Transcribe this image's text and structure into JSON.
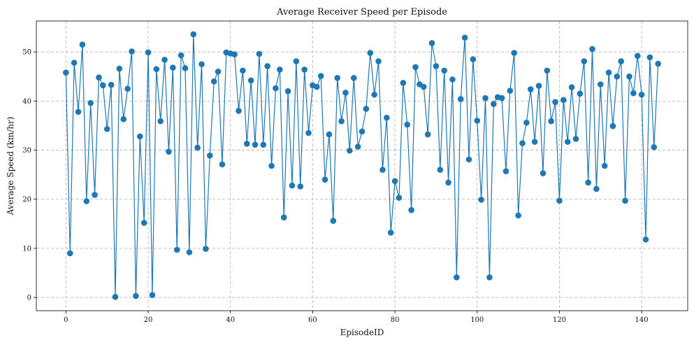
{
  "chart_data": {
    "type": "line",
    "title": "Average Receiver Speed per Episode",
    "xlabel": "EpisodeID",
    "ylabel": "Average Speed (km/hr)",
    "xlim": [
      -7.2,
      151.2
    ],
    "ylim": [
      -2.7,
      56.3
    ],
    "xticks": [
      0,
      20,
      40,
      60,
      80,
      100,
      120,
      140
    ],
    "yticks": [
      0,
      10,
      20,
      30,
      40,
      50
    ],
    "grid": true,
    "marker": "circle",
    "color": "#1f77b4",
    "x": [
      0,
      1,
      2,
      3,
      4,
      5,
      6,
      7,
      8,
      9,
      10,
      11,
      12,
      13,
      14,
      15,
      16,
      17,
      18,
      19,
      20,
      21,
      22,
      23,
      24,
      25,
      26,
      27,
      28,
      29,
      30,
      31,
      32,
      33,
      34,
      35,
      36,
      37,
      38,
      39,
      40,
      41,
      42,
      43,
      44,
      45,
      46,
      47,
      48,
      49,
      50,
      51,
      52,
      53,
      54,
      55,
      56,
      57,
      58,
      59,
      60,
      61,
      62,
      63,
      64,
      65,
      66,
      67,
      68,
      69,
      70,
      71,
      72,
      73,
      74,
      75,
      76,
      77,
      78,
      79,
      80,
      81,
      82,
      83,
      84,
      85,
      86,
      87,
      88,
      89,
      90,
      91,
      92,
      93,
      94,
      95,
      96,
      97,
      98,
      99,
      100,
      101,
      102,
      103,
      104,
      105,
      106,
      107,
      108,
      109,
      110,
      111,
      112,
      113,
      114,
      115,
      116,
      117,
      118,
      119,
      120,
      121,
      122,
      123,
      124,
      125,
      126,
      127,
      128,
      129,
      130,
      131,
      132,
      133,
      134,
      135,
      136,
      137,
      138,
      139,
      140,
      141,
      142,
      143,
      144
    ],
    "y": [
      45.8,
      9.0,
      47.8,
      37.8,
      51.5,
      19.6,
      39.6,
      20.9,
      44.8,
      43.2,
      34.3,
      43.3,
      0.1,
      46.6,
      36.3,
      42.5,
      50.1,
      0.3,
      32.8,
      15.2,
      49.9,
      0.5,
      46.5,
      35.9,
      48.4,
      29.7,
      46.8,
      9.7,
      49.3,
      46.7,
      9.2,
      53.6,
      30.5,
      47.5,
      9.9,
      28.9,
      44.0,
      46.0,
      27.1,
      49.9,
      49.7,
      49.5,
      38.0,
      46.2,
      31.3,
      44.2,
      31.1,
      49.6,
      31.1,
      47.1,
      26.8,
      42.6,
      46.4,
      16.3,
      42.0,
      22.8,
      48.1,
      22.6,
      46.4,
      33.5,
      43.2,
      42.9,
      45.1,
      24.0,
      33.2,
      15.6,
      44.7,
      35.9,
      41.7,
      29.9,
      44.7,
      30.7,
      33.8,
      38.4,
      49.8,
      41.3,
      48.1,
      26.0,
      36.6,
      13.2,
      23.7,
      20.3,
      43.7,
      35.2,
      17.8,
      46.9,
      43.4,
      42.9,
      33.2,
      51.8,
      47.1,
      26.0,
      46.2,
      23.4,
      44.4,
      4.1,
      40.4,
      52.9,
      28.1,
      48.5,
      36.0,
      19.9,
      40.6,
      4.1,
      39.4,
      40.8,
      40.6,
      25.7,
      42.1,
      49.8,
      16.7,
      31.4,
      35.6,
      42.4,
      31.7,
      43.1,
      25.3,
      46.2,
      35.9,
      39.8,
      19.7,
      40.2,
      31.7,
      42.8,
      32.3,
      41.5,
      48.1,
      23.4,
      50.6,
      22.1,
      43.4,
      26.8,
      45.8,
      34.9,
      45.0,
      48.1,
      19.7,
      45.0,
      41.6,
      49.2,
      41.3,
      11.8,
      48.9,
      30.6,
      47.6
    ]
  }
}
